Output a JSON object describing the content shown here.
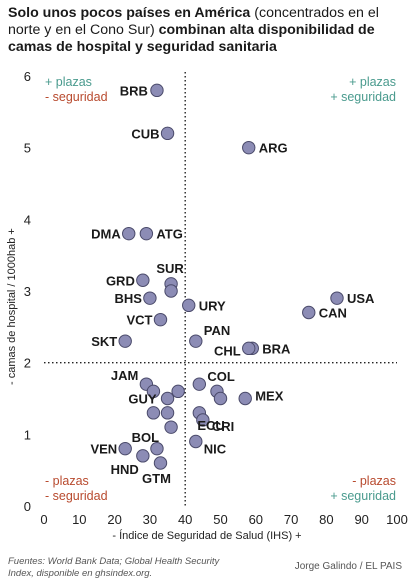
{
  "title": {
    "bold1": "Solo unos pocos países en América",
    "normal": " (concentrados en el norte y en el Cono Sur) ",
    "bold2": "combinan alta disponibilidad de camas de hospital y seguridad sanitaria"
  },
  "colors": {
    "dot_fill": "#8c8cb5",
    "dot_stroke": "#4a4a6a",
    "plus_color": "#4a9b8e",
    "minus_color": "#b84a2e",
    "axis_text": "#222222"
  },
  "quadrants": {
    "top_left": [
      "+ plazas",
      "- seguridad"
    ],
    "top_right": [
      "+ plazas",
      "+ seguridad"
    ],
    "bottom_left": [
      "- plazas",
      "- seguridad"
    ],
    "bottom_right": [
      "- plazas",
      "+ seguridad"
    ]
  },
  "chart_data": {
    "type": "scatter",
    "xlabel": "- Índice de Seguridad de Salud (IHS) +",
    "ylabel": "- camas de hospital / 1000hab +",
    "xlim": [
      0,
      100
    ],
    "ylim": [
      0,
      6
    ],
    "xticks": [
      0,
      10,
      20,
      30,
      40,
      50,
      60,
      70,
      80,
      90,
      100
    ],
    "yticks": [
      0,
      1,
      2,
      3,
      4,
      5,
      6
    ],
    "reference_lines": {
      "x": 40,
      "y": 2
    },
    "points": [
      {
        "label": "BRB",
        "x": 32,
        "y": 5.8
      },
      {
        "label": "CUB",
        "x": 35,
        "y": 5.2
      },
      {
        "label": "ARG",
        "x": 58,
        "y": 5.0
      },
      {
        "label": "DMA",
        "x": 24,
        "y": 3.8
      },
      {
        "label": "ATG",
        "x": 29,
        "y": 3.8
      },
      {
        "label": "SUR",
        "x": 36,
        "y": 3.1
      },
      {
        "label": "",
        "x": 36,
        "y": 3.0
      },
      {
        "label": "GRD",
        "x": 28,
        "y": 3.15
      },
      {
        "label": "BHS",
        "x": 30,
        "y": 2.9
      },
      {
        "label": "URY",
        "x": 41,
        "y": 2.8
      },
      {
        "label": "USA",
        "x": 83,
        "y": 2.9
      },
      {
        "label": "CAN",
        "x": 75,
        "y": 2.7
      },
      {
        "label": "VCT",
        "x": 33,
        "y": 2.6
      },
      {
        "label": "PAN",
        "x": 43,
        "y": 2.3
      },
      {
        "label": "SKT",
        "x": 23,
        "y": 2.3
      },
      {
        "label": "BRA",
        "x": 59,
        "y": 2.2
      },
      {
        "label": "CHL",
        "x": 58,
        "y": 2.2
      },
      {
        "label": "JAM",
        "x": 29,
        "y": 1.7
      },
      {
        "label": "COL",
        "x": 44,
        "y": 1.7
      },
      {
        "label": "",
        "x": 31,
        "y": 1.6
      },
      {
        "label": "",
        "x": 38,
        "y": 1.6
      },
      {
        "label": "",
        "x": 49,
        "y": 1.6
      },
      {
        "label": "GUY",
        "x": 35,
        "y": 1.5
      },
      {
        "label": "MEX",
        "x": 57,
        "y": 1.5
      },
      {
        "label": "",
        "x": 50,
        "y": 1.5
      },
      {
        "label": "",
        "x": 31,
        "y": 1.3
      },
      {
        "label": "",
        "x": 35,
        "y": 1.3
      },
      {
        "label": "ECU",
        "x": 44,
        "y": 1.3
      },
      {
        "label": "CRI",
        "x": 45,
        "y": 1.2
      },
      {
        "label": "BOL",
        "x": 36,
        "y": 1.1
      },
      {
        "label": "NIC",
        "x": 43,
        "y": 0.9
      },
      {
        "label": "VEN",
        "x": 23,
        "y": 0.8
      },
      {
        "label": "",
        "x": 32,
        "y": 0.8
      },
      {
        "label": "HND",
        "x": 28,
        "y": 0.7
      },
      {
        "label": "GTM",
        "x": 33,
        "y": 0.6
      }
    ]
  },
  "footer": {
    "source": "Fuentes: World Bank Data; Global Health Security Index, disponible en ghsindex.org.",
    "credit": "Jorge Galindo / EL PAIS"
  }
}
